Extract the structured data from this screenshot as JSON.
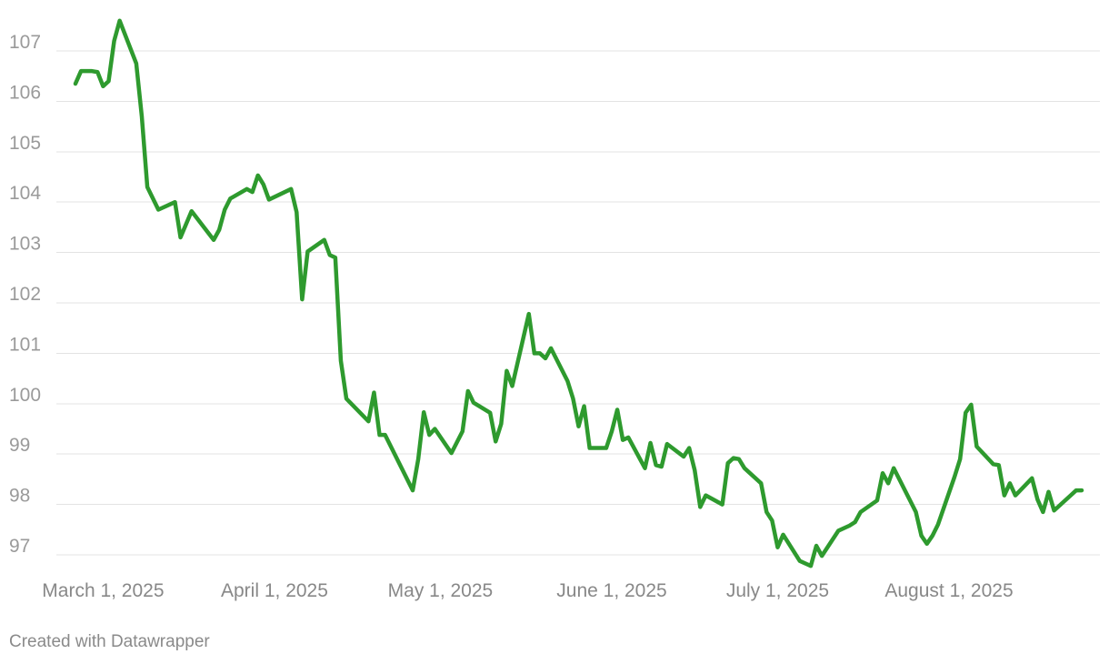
{
  "chart_data": {
    "type": "line",
    "y_ticks": [
      97,
      98,
      99,
      100,
      101,
      102,
      103,
      104,
      105,
      106,
      107
    ],
    "x_ticks": [
      {
        "date": "2025-03-01",
        "label": "March 1, 2025"
      },
      {
        "date": "2025-04-01",
        "label": "April 1, 2025"
      },
      {
        "date": "2025-05-01",
        "label": "May 1, 2025"
      },
      {
        "date": "2025-06-01",
        "label": "June 1, 2025"
      },
      {
        "date": "2025-07-01",
        "label": "July 1, 2025"
      },
      {
        "date": "2025-08-01",
        "label": "August 1, 2025"
      }
    ],
    "ylim": [
      96.8,
      107.6
    ],
    "xlim": [
      "2025-02-24",
      "2025-08-27"
    ],
    "grid": true,
    "series": [
      {
        "color": "#2e9a2e",
        "points": [
          [
            "2025-02-24",
            106.35
          ],
          [
            "2025-02-25",
            106.6
          ],
          [
            "2025-02-27",
            106.6
          ],
          [
            "2025-02-28",
            106.58
          ],
          [
            "2025-03-01",
            106.3
          ],
          [
            "2025-03-02",
            106.4
          ],
          [
            "2025-03-03",
            107.2
          ],
          [
            "2025-03-04",
            107.6
          ],
          [
            "2025-03-07",
            106.75
          ],
          [
            "2025-03-08",
            105.7
          ],
          [
            "2025-03-09",
            104.3
          ],
          [
            "2025-03-11",
            103.85
          ],
          [
            "2025-03-14",
            104.0
          ],
          [
            "2025-03-15",
            103.3
          ],
          [
            "2025-03-17",
            103.82
          ],
          [
            "2025-03-21",
            103.25
          ],
          [
            "2025-03-22",
            103.45
          ],
          [
            "2025-03-23",
            103.85
          ],
          [
            "2025-03-24",
            104.07
          ],
          [
            "2025-03-27",
            104.26
          ],
          [
            "2025-03-28",
            104.2
          ],
          [
            "2025-03-29",
            104.53
          ],
          [
            "2025-03-30",
            104.35
          ],
          [
            "2025-03-31",
            104.05
          ],
          [
            "2025-04-04",
            104.26
          ],
          [
            "2025-04-05",
            103.8
          ],
          [
            "2025-04-06",
            102.07
          ],
          [
            "2025-04-07",
            103.02
          ],
          [
            "2025-04-10",
            103.25
          ],
          [
            "2025-04-11",
            102.95
          ],
          [
            "2025-04-12",
            102.9
          ],
          [
            "2025-04-13",
            100.85
          ],
          [
            "2025-04-14",
            100.1
          ],
          [
            "2025-04-18",
            99.65
          ],
          [
            "2025-04-19",
            100.22
          ],
          [
            "2025-04-20",
            99.38
          ],
          [
            "2025-04-21",
            99.38
          ],
          [
            "2025-04-26",
            98.28
          ],
          [
            "2025-04-27",
            98.9
          ],
          [
            "2025-04-28",
            99.83
          ],
          [
            "2025-04-29",
            99.38
          ],
          [
            "2025-04-30",
            99.5
          ],
          [
            "2025-05-03",
            99.02
          ],
          [
            "2025-05-05",
            99.45
          ],
          [
            "2025-05-06",
            100.25
          ],
          [
            "2025-05-07",
            100.02
          ],
          [
            "2025-05-10",
            99.82
          ],
          [
            "2025-05-11",
            99.25
          ],
          [
            "2025-05-12",
            99.6
          ],
          [
            "2025-05-13",
            100.65
          ],
          [
            "2025-05-14",
            100.35
          ],
          [
            "2025-05-17",
            101.78
          ],
          [
            "2025-05-18",
            101.0
          ],
          [
            "2025-05-19",
            101.0
          ],
          [
            "2025-05-20",
            100.9
          ],
          [
            "2025-05-21",
            101.1
          ],
          [
            "2025-05-24",
            100.45
          ],
          [
            "2025-05-25",
            100.1
          ],
          [
            "2025-05-26",
            99.55
          ],
          [
            "2025-05-27",
            99.95
          ],
          [
            "2025-05-28",
            99.12
          ],
          [
            "2025-05-31",
            99.12
          ],
          [
            "2025-06-01",
            99.45
          ],
          [
            "2025-06-02",
            99.88
          ],
          [
            "2025-06-03",
            99.28
          ],
          [
            "2025-06-04",
            99.33
          ],
          [
            "2025-06-07",
            98.72
          ],
          [
            "2025-06-08",
            99.22
          ],
          [
            "2025-06-09",
            98.78
          ],
          [
            "2025-06-10",
            98.75
          ],
          [
            "2025-06-11",
            99.2
          ],
          [
            "2025-06-14",
            98.95
          ],
          [
            "2025-06-15",
            99.12
          ],
          [
            "2025-06-16",
            98.68
          ],
          [
            "2025-06-17",
            97.95
          ],
          [
            "2025-06-18",
            98.18
          ],
          [
            "2025-06-21",
            98.0
          ],
          [
            "2025-06-22",
            98.82
          ],
          [
            "2025-06-23",
            98.92
          ],
          [
            "2025-06-24",
            98.9
          ],
          [
            "2025-06-25",
            98.72
          ],
          [
            "2025-06-28",
            98.42
          ],
          [
            "2025-06-29",
            97.85
          ],
          [
            "2025-06-30",
            97.68
          ],
          [
            "2025-07-01",
            97.15
          ],
          [
            "2025-07-02",
            97.4
          ],
          [
            "2025-07-05",
            96.88
          ],
          [
            "2025-07-07",
            96.78
          ],
          [
            "2025-07-08",
            97.18
          ],
          [
            "2025-07-09",
            96.98
          ],
          [
            "2025-07-12",
            97.48
          ],
          [
            "2025-07-14",
            97.58
          ],
          [
            "2025-07-15",
            97.65
          ],
          [
            "2025-07-16",
            97.85
          ],
          [
            "2025-07-19",
            98.08
          ],
          [
            "2025-07-20",
            98.62
          ],
          [
            "2025-07-21",
            98.42
          ],
          [
            "2025-07-22",
            98.72
          ],
          [
            "2025-07-26",
            97.85
          ],
          [
            "2025-07-27",
            97.38
          ],
          [
            "2025-07-28",
            97.22
          ],
          [
            "2025-07-29",
            97.38
          ],
          [
            "2025-07-30",
            97.6
          ],
          [
            "2025-08-02",
            98.55
          ],
          [
            "2025-08-03",
            98.9
          ],
          [
            "2025-08-04",
            99.82
          ],
          [
            "2025-08-05",
            99.98
          ],
          [
            "2025-08-06",
            99.15
          ],
          [
            "2025-08-09",
            98.8
          ],
          [
            "2025-08-10",
            98.78
          ],
          [
            "2025-08-11",
            98.18
          ],
          [
            "2025-08-12",
            98.42
          ],
          [
            "2025-08-13",
            98.18
          ],
          [
            "2025-08-16",
            98.52
          ],
          [
            "2025-08-17",
            98.1
          ],
          [
            "2025-08-18",
            97.85
          ],
          [
            "2025-08-19",
            98.25
          ],
          [
            "2025-08-20",
            97.88
          ],
          [
            "2025-08-23",
            98.18
          ],
          [
            "2025-08-24",
            98.28
          ],
          [
            "2025-08-25",
            98.28
          ]
        ]
      }
    ]
  },
  "footer": {
    "credit": "Created with Datawrapper"
  }
}
